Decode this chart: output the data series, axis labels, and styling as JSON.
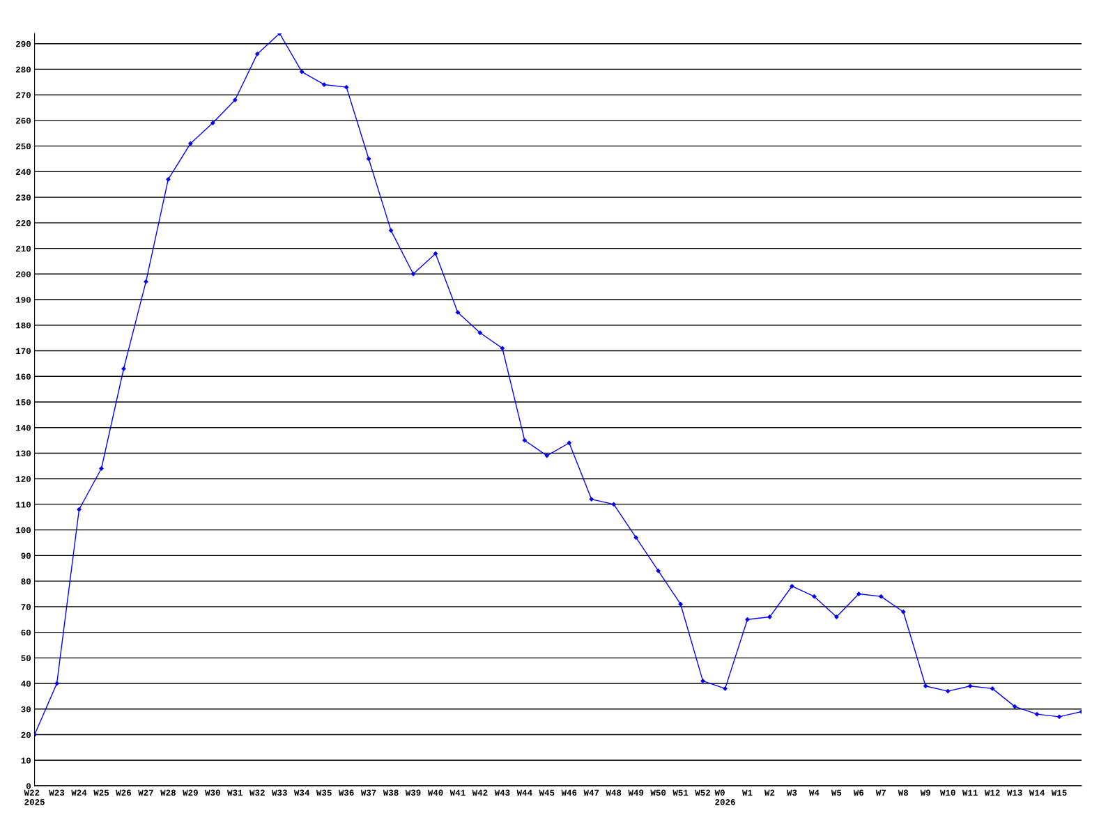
{
  "chart_data": {
    "type": "line",
    "categories": [
      "W22\n2025",
      "W23",
      "W24",
      "W25",
      "W26",
      "W27",
      "W28",
      "W29",
      "W30",
      "W31",
      "W32",
      "W33",
      "W34",
      "W35",
      "W36",
      "W37",
      "W38",
      "W39",
      "W40",
      "W41",
      "W42",
      "W43",
      "W44",
      "W45",
      "W46",
      "W47",
      "W48",
      "W49",
      "W50",
      "W51",
      "W52",
      "W0\n2026",
      "W1",
      "W2",
      "W3",
      "W4",
      "W5",
      "W6",
      "W7",
      "W8",
      "W9",
      "W10",
      "W11",
      "W12",
      "W13",
      "W14",
      "W15",
      null
    ],
    "series": [
      {
        "color": "#0000ff",
        "values": [
          20,
          40,
          108,
          124,
          163,
          197,
          237,
          251,
          259,
          268,
          286,
          294,
          279,
          274,
          273,
          245,
          217,
          200,
          208,
          185,
          177,
          171,
          135,
          129,
          134,
          112,
          110,
          97,
          84,
          71,
          41,
          38,
          65,
          66,
          78,
          74,
          66,
          75,
          74,
          68,
          39,
          37,
          39,
          38,
          31,
          28,
          27,
          29
        ]
      }
    ],
    "ylim": [
      0,
      294
    ],
    "yticks": [
      0,
      10,
      20,
      30,
      40,
      50,
      60,
      70,
      80,
      90,
      100,
      110,
      120,
      130,
      140,
      150,
      160,
      170,
      180,
      190,
      200,
      210,
      220,
      230,
      240,
      250,
      260,
      270,
      280,
      290
    ],
    "grid": "y",
    "marker": "diamond",
    "line_style": "solid",
    "legend": false
  }
}
